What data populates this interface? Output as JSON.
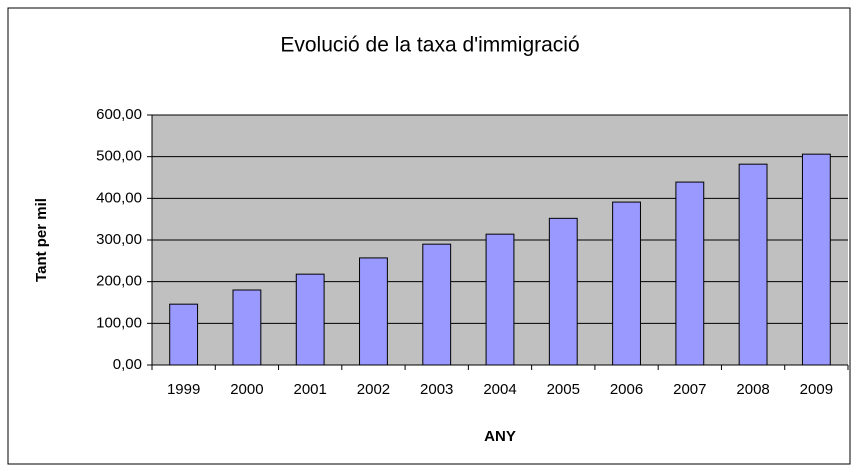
{
  "chart_data": {
    "type": "bar",
    "title": "Evolució de la taxa d'immigració",
    "x_label": "ANY",
    "y_label": "Tant per mil",
    "categories": [
      "1999",
      "2000",
      "2001",
      "2002",
      "2003",
      "2004",
      "2005",
      "2006",
      "2007",
      "2008",
      "2009"
    ],
    "values": [
      146,
      180,
      218,
      257,
      290,
      314,
      352,
      391,
      439,
      482,
      506
    ],
    "color": "#9999ff",
    "grid": true,
    "ylim": [
      0,
      600
    ],
    "yticks": [
      {
        "value": 0,
        "label": "0,00"
      },
      {
        "value": 100,
        "label": "100,00"
      },
      {
        "value": 200,
        "label": "200,00"
      },
      {
        "value": 300,
        "label": "300,00"
      },
      {
        "value": 400,
        "label": "400,00"
      },
      {
        "value": 500,
        "label": "500,00"
      },
      {
        "value": 600,
        "label": "600,00"
      }
    ]
  }
}
